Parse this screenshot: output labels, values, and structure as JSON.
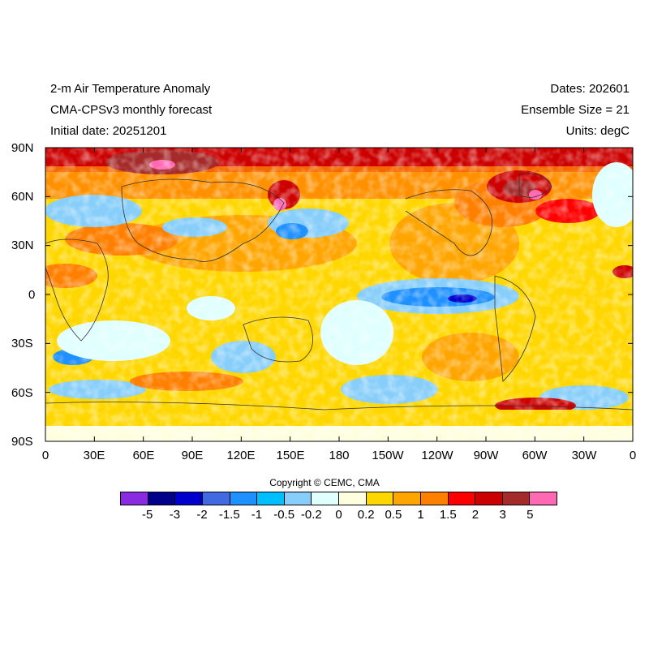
{
  "header": {
    "left": [
      "2-m Air Temperature Anomaly",
      "CMA-CPSv3 monthly forecast",
      "Initial date: 20251201"
    ],
    "right": [
      "Dates: 202601",
      "Ensemble Size = 21",
      "Units: degC"
    ]
  },
  "axes": {
    "lat_ticks": [
      "90N",
      "60N",
      "30N",
      "0",
      "30S",
      "60S",
      "90S"
    ],
    "lon_ticks": [
      "0",
      "30E",
      "60E",
      "90E",
      "120E",
      "150E",
      "180",
      "150W",
      "120W",
      "90W",
      "60W",
      "30W",
      "0"
    ]
  },
  "copyright": "Copyright © CEMC, CMA",
  "colorbar": {
    "colors": [
      "#8a2be2",
      "#00008b",
      "#0000cd",
      "#4169e1",
      "#1e90ff",
      "#00bfff",
      "#87cefa",
      "#e0ffff",
      "#ffffe0",
      "#ffd700",
      "#ffa500",
      "#ff7f00",
      "#ff0000",
      "#cd0000",
      "#a52a2a",
      "#ff69b4"
    ],
    "labels": [
      "-5",
      "-3",
      "-2",
      "-1.5",
      "-1",
      "-0.5",
      "-0.2",
      "0",
      "0.2",
      "0.5",
      "1",
      "1.5",
      "2",
      "3",
      "5"
    ]
  }
}
